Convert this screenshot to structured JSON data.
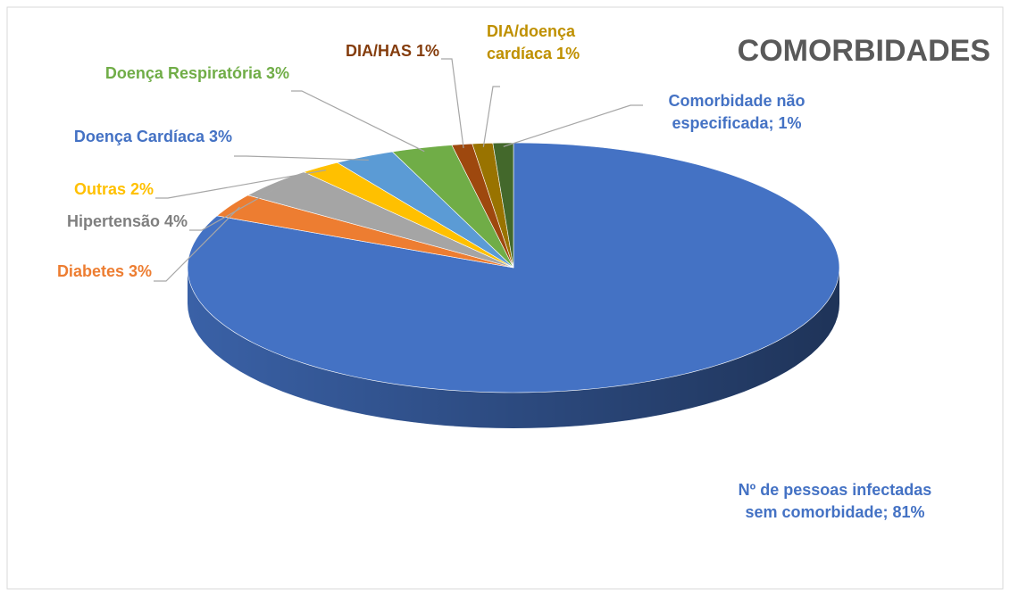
{
  "chart_data": {
    "type": "pie",
    "title": "COMORBIDADES",
    "categories": [
      "Nº de pessoas infectadas sem comorbidade",
      "Diabetes",
      "Hipertensão",
      "Outras",
      "Doença Cardíaca",
      "Doença Respiratória",
      "DIA/HAS",
      "DIA/doença cardíaca",
      "Comorbidade não especificada"
    ],
    "values": [
      81,
      3,
      4,
      2,
      3,
      3,
      1,
      1,
      1
    ],
    "value_labels": [
      "Nº de pessoas infectadas sem comorbidade; 81%",
      "Diabetes 3%",
      "Hipertensão 4%",
      "Outras 2%",
      "Doença Cardíaca 3%",
      "Doença Respiratória 3%",
      "DIA/HAS 1%",
      "DIA/doença cardíaca 1%",
      "Comorbidade não especificada; 1%"
    ],
    "colors": [
      "#4472c4",
      "#ed7d31",
      "#a5a5a5",
      "#ffc000",
      "#5b9bd5",
      "#70ad47",
      "#9e480e",
      "#997300",
      "#43682b"
    ],
    "label_colors": [
      "#4472c4",
      "#ed7d31",
      "#7f7f7f",
      "#ffc000",
      "#4472c4",
      "#70ad47",
      "#843c0c",
      "#bf9000",
      "#4472c4"
    ]
  }
}
